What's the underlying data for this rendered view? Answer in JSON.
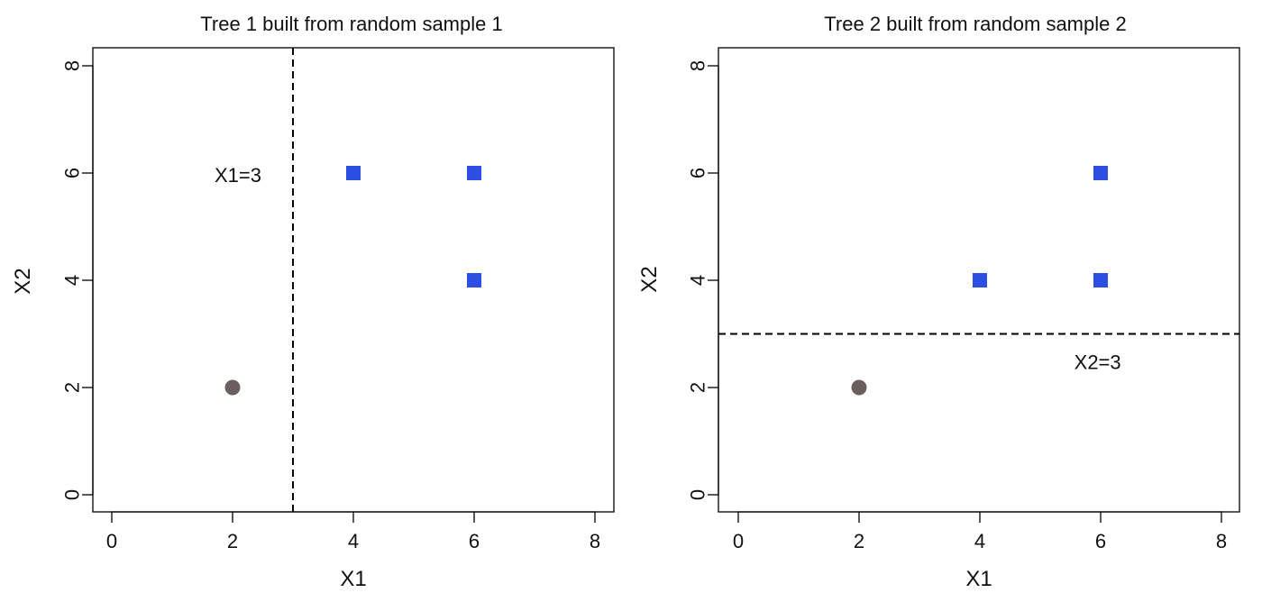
{
  "chart_data": [
    {
      "type": "scatter",
      "title": "Tree 1 built from random sample 1",
      "xlabel": "X1",
      "ylabel": "X2",
      "xlim": [
        0,
        8
      ],
      "ylim": [
        0,
        8
      ],
      "xticks": [
        "0",
        "2",
        "4",
        "6",
        "8"
      ],
      "yticks": [
        "0",
        "2",
        "4",
        "6",
        "8"
      ],
      "grid": false,
      "legend": "none",
      "series": [
        {
          "marker": "circle",
          "color": "#6b5e5e",
          "points": [
            {
              "x": 2,
              "y": 2
            }
          ]
        },
        {
          "marker": "square",
          "color": "#2b4fe0",
          "points": [
            {
              "x": 4,
              "y": 6
            },
            {
              "x": 6,
              "y": 6
            },
            {
              "x": 6,
              "y": 4
            }
          ]
        }
      ],
      "split": {
        "orientation": "vertical",
        "value": 3,
        "style": "dashed",
        "label": "X1=3"
      }
    },
    {
      "type": "scatter",
      "title": "Tree 2 built from random sample 2",
      "xlabel": "X1",
      "ylabel": "X2",
      "xlim": [
        0,
        8
      ],
      "ylim": [
        0,
        8
      ],
      "xticks": [
        "0",
        "2",
        "4",
        "6",
        "8"
      ],
      "yticks": [
        "0",
        "2",
        "4",
        "6",
        "8"
      ],
      "grid": false,
      "legend": "none",
      "series": [
        {
          "marker": "circle",
          "color": "#6b5e5e",
          "points": [
            {
              "x": 2,
              "y": 2
            }
          ]
        },
        {
          "marker": "square",
          "color": "#2b4fe0",
          "points": [
            {
              "x": 4,
              "y": 4
            },
            {
              "x": 6,
              "y": 4
            },
            {
              "x": 6,
              "y": 6
            }
          ]
        }
      ],
      "split": {
        "orientation": "horizontal",
        "value": 3,
        "style": "dashed",
        "label": "X2=3"
      }
    }
  ]
}
